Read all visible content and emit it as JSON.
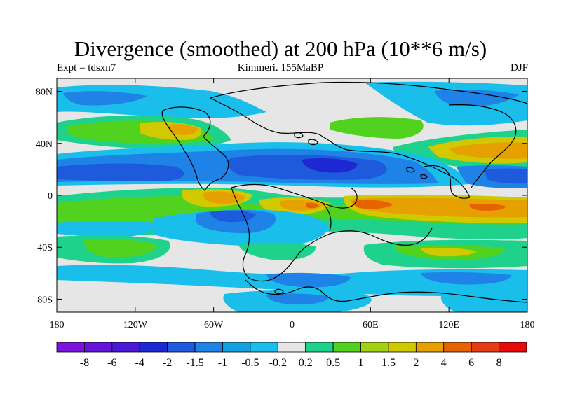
{
  "title": "Divergence (smoothed) at 200 hPa (10**6 m/s)",
  "subtitle_left": "Expt = tdsxn7",
  "subtitle_center": "Kimmeri. 155MaBP",
  "subtitle_right": "DJF",
  "axes": {
    "x_range": [
      -180,
      180
    ],
    "y_range": [
      -90,
      90
    ],
    "x_ticks": [
      {
        "value": -180,
        "label": "180"
      },
      {
        "value": -120,
        "label": "120W"
      },
      {
        "value": -60,
        "label": "60W"
      },
      {
        "value": 0,
        "label": "0"
      },
      {
        "value": 60,
        "label": "60E"
      },
      {
        "value": 120,
        "label": "120E"
      },
      {
        "value": 180,
        "label": "180"
      }
    ],
    "y_ticks": [
      {
        "value": 80,
        "label": "80N"
      },
      {
        "value": 40,
        "label": "40N"
      },
      {
        "value": 0,
        "label": "0"
      },
      {
        "value": -40,
        "label": "40S"
      },
      {
        "value": -80,
        "label": "80S"
      }
    ]
  },
  "colorbar": {
    "labels": [
      "-8",
      "-6",
      "-4",
      "-2",
      "-1.5",
      "-1",
      "-0.5",
      "-0.2",
      "0.2",
      "0.5",
      "1",
      "1.5",
      "2",
      "4",
      "6",
      "8"
    ],
    "colors": [
      "#7a14dc",
      "#6414d8",
      "#4b19d6",
      "#1e28d2",
      "#1e5adc",
      "#1e82e6",
      "#14a0e1",
      "#19beeb",
      "#e6e6e6",
      "#1ed28c",
      "#50d21e",
      "#a0d20f",
      "#d2c800",
      "#e6a000",
      "#e66400",
      "#e63c14",
      "#e60a0a"
    ]
  },
  "legend_placement": "bottom"
}
